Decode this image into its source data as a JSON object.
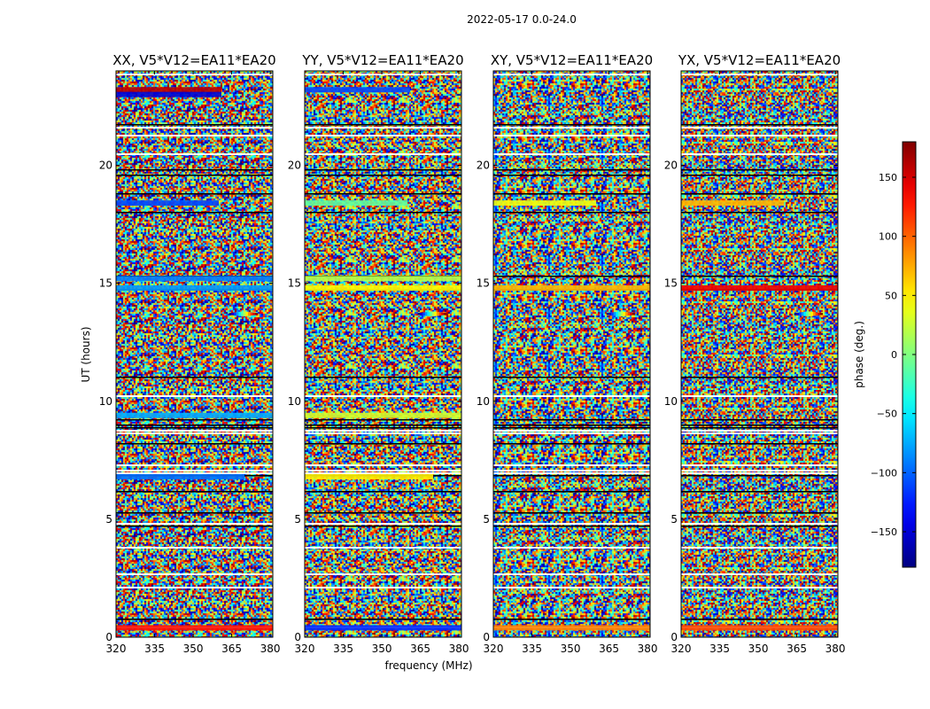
{
  "figure": {
    "suptitle": "2022-05-17 0.0-24.0"
  },
  "chart_data": {
    "type": "heatmap",
    "xlabel": "frequency (MHz)",
    "ylabel": "UT (hours)",
    "xlim": [
      320,
      381
    ],
    "ylim": [
      0,
      24
    ],
    "xticks": [
      320,
      335,
      350,
      365,
      380
    ],
    "yticks": [
      0,
      5,
      10,
      15,
      20
    ],
    "panels": [
      {
        "title": "XX, V5*V12=EA11*EA20",
        "pol": "XX",
        "features": [
          {
            "t": 23.2,
            "f": [
              320,
              361
            ],
            "phase": 160
          },
          {
            "t": 23.0,
            "f": [
              320,
              361
            ],
            "phase": -150
          },
          {
            "t": 18.4,
            "f": [
              320,
              360
            ],
            "phase": -110
          },
          {
            "t": 15.2,
            "f": [
              320,
              381
            ],
            "phase": -90
          },
          {
            "t": 14.8,
            "f": [
              320,
              381
            ],
            "phase": -80
          },
          {
            "t": 9.4,
            "f": [
              320,
              381
            ],
            "phase": -75
          },
          {
            "t": 6.8,
            "f": [
              320,
              370
            ],
            "phase": -95
          },
          {
            "t": 0.4,
            "f": [
              320,
              381
            ],
            "phase": 130
          }
        ]
      },
      {
        "title": "YY, V5*V12=EA11*EA20",
        "pol": "YY",
        "features": [
          {
            "t": 23.2,
            "f": [
              320,
              361
            ],
            "phase": -110
          },
          {
            "t": 18.4,
            "f": [
              320,
              360
            ],
            "phase": -10
          },
          {
            "t": 15.2,
            "f": [
              320,
              381
            ],
            "phase": 20
          },
          {
            "t": 14.8,
            "f": [
              320,
              381
            ],
            "phase": 45
          },
          {
            "t": 9.4,
            "f": [
              320,
              381
            ],
            "phase": 30
          },
          {
            "t": 6.8,
            "f": [
              320,
              370
            ],
            "phase": 50
          },
          {
            "t": 0.4,
            "f": [
              320,
              381
            ],
            "phase": -120
          }
        ]
      },
      {
        "title": "XY, V5*V12=EA11*EA20",
        "pol": "XY",
        "features": [
          {
            "t": 18.4,
            "f": [
              320,
              360
            ],
            "phase": 40
          },
          {
            "t": 14.8,
            "f": [
              320,
              381
            ],
            "phase": 70
          },
          {
            "t": 0.4,
            "f": [
              320,
              381
            ],
            "phase": 90
          }
        ]
      },
      {
        "title": "YX, V5*V12=EA11*EA20",
        "pol": "YX",
        "features": [
          {
            "t": 18.4,
            "f": [
              320,
              360
            ],
            "phase": 70
          },
          {
            "t": 14.8,
            "f": [
              320,
              381
            ],
            "phase": 140
          },
          {
            "t": 0.4,
            "f": [
              320,
              381
            ],
            "phase": 110
          }
        ]
      }
    ],
    "fringe": {
      "t": 13.7,
      "f": [
        364,
        375
      ]
    },
    "colorbar": {
      "label": "phase (deg.)",
      "range": [
        -180,
        180
      ],
      "ticks": [
        -150,
        -100,
        -50,
        0,
        50,
        100,
        150
      ],
      "tick_labels": [
        "−150",
        "−100",
        "−50",
        "0",
        "50",
        "100",
        "150"
      ],
      "colormap": "jet"
    }
  }
}
